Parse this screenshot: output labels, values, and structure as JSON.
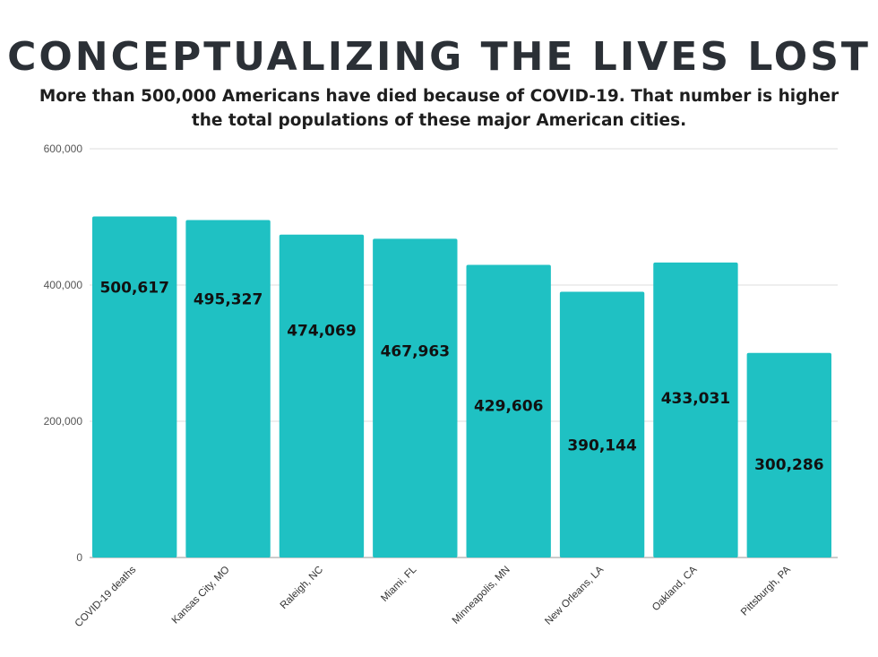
{
  "chart_data": {
    "type": "bar",
    "title": "CONCEPTUALIZING THE LIVES LOST",
    "subtitle": "More than 500,000 Americans have died because of COVID-19. That number is higher the total populations of these major American cities.",
    "categories": [
      "COVID-19 deaths",
      "Kansas City, MO",
      "Raleigh, NC",
      "Miami, FL",
      "Minneapolis, MN",
      "New Orleans, LA",
      "Oakland, CA",
      "Pittsburgh, PA"
    ],
    "values": [
      500617,
      495327,
      474069,
      467963,
      429606,
      390144,
      433031,
      300286
    ],
    "data_labels": [
      "500,617",
      "495,327",
      "474,069",
      "467,963",
      "429,606",
      "390,144",
      "433,031",
      "300,286"
    ],
    "ylim": [
      0,
      600000
    ],
    "yticks": [
      0,
      200000,
      400000,
      600000
    ],
    "ytick_labels": [
      "0",
      "200,000",
      "400,000",
      "600,000"
    ],
    "xlabel": "",
    "ylabel": "",
    "grid": true,
    "bar_color": "#1fc1c3"
  }
}
